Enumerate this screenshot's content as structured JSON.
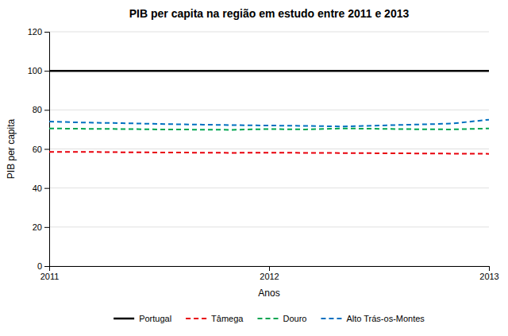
{
  "chart_data": {
    "type": "line",
    "title": "PIB per capita na região em estudo entre 2011 e 2013",
    "xlabel": "Anos",
    "ylabel": "PIB per capita",
    "x": [
      2011.0,
      2011.167,
      2011.333,
      2011.5,
      2011.667,
      2011.833,
      2012.0,
      2012.167,
      2012.333,
      2012.5,
      2012.667,
      2012.833,
      2013.0
    ],
    "series": [
      {
        "name": "Portugal",
        "color": "#000000",
        "line_style": "solid",
        "values": [
          100,
          100,
          100,
          100,
          100,
          100,
          100,
          100,
          100,
          100,
          100,
          100,
          100
        ]
      },
      {
        "name": "Tâmega",
        "color": "#e8000b",
        "line_style": "dashed",
        "values": [
          58.5,
          58.5,
          58.3,
          58.2,
          58.1,
          58.0,
          58.1,
          58.0,
          57.9,
          57.8,
          57.7,
          57.6,
          57.5
        ]
      },
      {
        "name": "Douro",
        "color": "#00a550",
        "line_style": "dashed",
        "values": [
          70.5,
          70.3,
          70.2,
          70.0,
          69.9,
          69.8,
          70.2,
          70.0,
          70.5,
          70.3,
          70.1,
          70.0,
          70.5
        ]
      },
      {
        "name": "Alto Trás-os-Montes",
        "color": "#0070c0",
        "line_style": "dashed",
        "values": [
          74.0,
          73.5,
          73.2,
          72.8,
          72.5,
          72.2,
          72.0,
          71.8,
          71.5,
          72.0,
          72.5,
          73.0,
          75.0
        ]
      }
    ],
    "xlim": [
      2011,
      2013
    ],
    "xticks": [
      2011,
      2012,
      2013
    ],
    "ylim": [
      0,
      120
    ],
    "yticks": [
      0,
      20,
      40,
      60,
      80,
      100,
      120
    ],
    "grid": "y",
    "legend": "bottom"
  }
}
